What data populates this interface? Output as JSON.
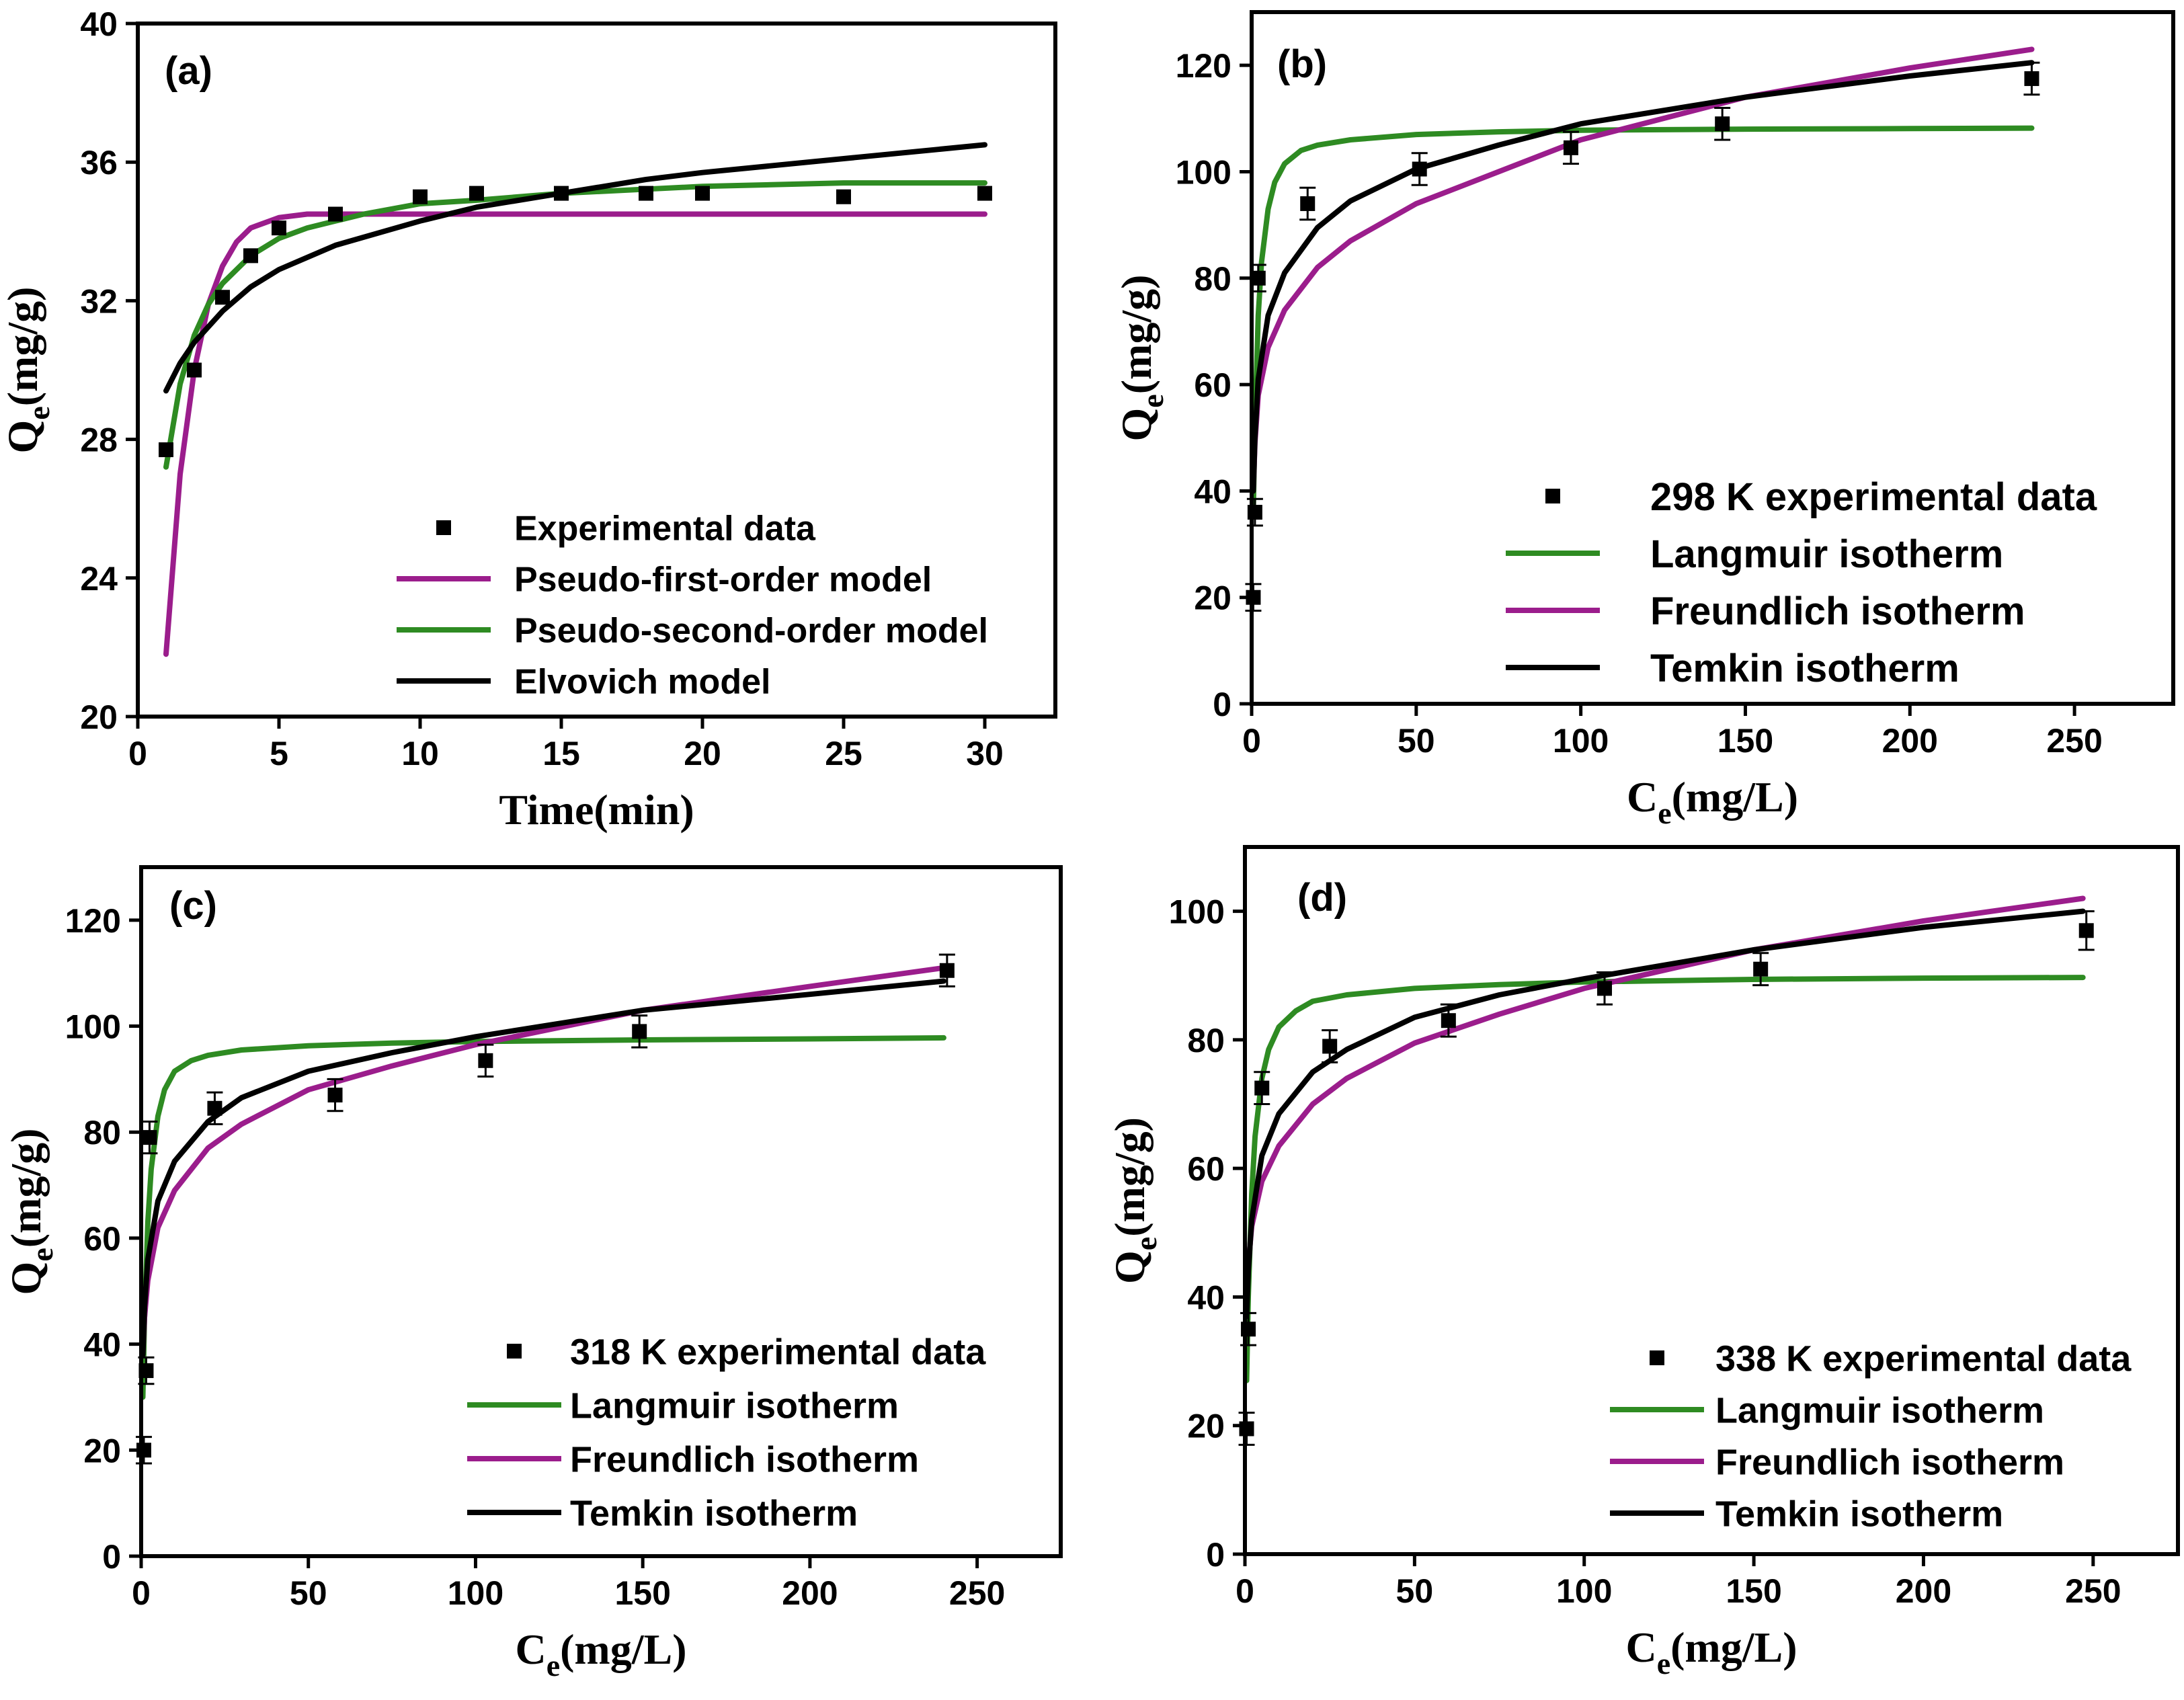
{
  "chart_data": [
    {
      "panel": "a",
      "type": "line",
      "panel_label": "(a)",
      "xlabel": "Time(min)",
      "ylabel_main": "Q",
      "ylabel_sub": "e",
      "ylabel_unit": "(mg/g)",
      "xlim": [
        0,
        32.5
      ],
      "ylim": [
        20,
        40
      ],
      "xticks": [
        0,
        5,
        10,
        15,
        20,
        25,
        30
      ],
      "yticks": [
        20,
        24,
        28,
        32,
        36,
        40
      ],
      "legend_position": "bottom-right",
      "points": {
        "name": "Experimental data",
        "x": [
          1,
          2,
          3,
          4,
          5,
          7,
          10,
          12,
          15,
          18,
          20,
          25,
          30
        ],
        "y": [
          27.7,
          30.0,
          32.1,
          33.3,
          34.1,
          34.5,
          35.0,
          35.1,
          35.1,
          35.1,
          35.1,
          35.0,
          35.1
        ]
      },
      "series": [
        {
          "name": "Pseudo-first-order model",
          "color": "#9b1d8c",
          "x": [
            1,
            1.5,
            2,
            2.5,
            3,
            3.5,
            4,
            5,
            6,
            7,
            8,
            10,
            15,
            20,
            25,
            30
          ],
          "y": [
            21.8,
            27.0,
            30.0,
            31.9,
            33.0,
            33.7,
            34.1,
            34.4,
            34.5,
            34.5,
            34.5,
            34.5,
            34.5,
            34.5,
            34.5,
            34.5
          ]
        },
        {
          "name": "Pseudo-second-order model",
          "color": "#2e8b22",
          "x": [
            1,
            1.5,
            2,
            2.5,
            3,
            4,
            5,
            6,
            7,
            8,
            10,
            12,
            15,
            20,
            25,
            30
          ],
          "y": [
            27.2,
            29.6,
            31.0,
            31.9,
            32.5,
            33.3,
            33.8,
            34.1,
            34.3,
            34.5,
            34.8,
            34.9,
            35.1,
            35.3,
            35.4,
            35.4
          ]
        },
        {
          "name": "Elvovich model",
          "color": "#000000",
          "x": [
            1,
            1.5,
            2,
            3,
            4,
            5,
            7,
            10,
            12,
            15,
            18,
            20,
            25,
            30
          ],
          "y": [
            29.4,
            30.2,
            30.8,
            31.7,
            32.4,
            32.9,
            33.6,
            34.3,
            34.7,
            35.1,
            35.5,
            35.7,
            36.1,
            36.5
          ]
        }
      ]
    },
    {
      "panel": "b",
      "type": "line",
      "panel_label": "(b)",
      "xlabel_main": "C",
      "xlabel_sub": "e",
      "xlabel_unit": "(mg/L)",
      "ylabel_main": "Q",
      "ylabel_sub": "e",
      "ylabel_unit": "(mg/g)",
      "xlim": [
        0,
        280
      ],
      "ylim": [
        0,
        130
      ],
      "xticks": [
        0,
        50,
        100,
        150,
        200,
        250
      ],
      "yticks": [
        0,
        20,
        40,
        60,
        80,
        100,
        120
      ],
      "legend_position": "bottom-right",
      "points": {
        "name": "298 K experimental data",
        "x": [
          0.5,
          1,
          2,
          17,
          51,
          97,
          143,
          237
        ],
        "y": [
          20,
          36,
          80,
          94,
          100.5,
          104.5,
          109,
          117.5
        ],
        "err": [
          2.5,
          2.5,
          2.5,
          3,
          3,
          3,
          3,
          3
        ]
      },
      "series": [
        {
          "name": "Langmuir isotherm",
          "color": "#2e8b22",
          "x": [
            0.5,
            1,
            2,
            3,
            5,
            7,
            10,
            15,
            20,
            30,
            50,
            75,
            100,
            150,
            200,
            237
          ],
          "y": [
            36,
            52,
            73,
            83,
            93,
            98,
            101.5,
            104,
            105,
            106,
            107,
            107.5,
            107.8,
            108,
            108.1,
            108.2
          ]
        },
        {
          "name": "Freundlich isotherm",
          "color": "#9b1d8c",
          "x": [
            0.5,
            1,
            2,
            5,
            10,
            20,
            30,
            50,
            75,
            100,
            150,
            200,
            237
          ],
          "y": [
            40,
            49,
            58,
            67,
            74,
            82,
            87,
            94,
            100,
            106,
            114,
            119.5,
            123
          ]
        },
        {
          "name": "Temkin isotherm",
          "color": "#000000",
          "x": [
            0.5,
            1,
            2,
            5,
            10,
            20,
            30,
            50,
            75,
            100,
            150,
            200,
            237
          ],
          "y": [
            40,
            50,
            61,
            73,
            81,
            89.5,
            94.5,
            100.5,
            105,
            109,
            114,
            118,
            120.5
          ]
        }
      ]
    },
    {
      "panel": "c",
      "type": "line",
      "panel_label": "(c)",
      "xlabel_main": "C",
      "xlabel_sub": "e",
      "xlabel_unit": "(mg/L)",
      "ylabel_main": "Q",
      "ylabel_sub": "e",
      "ylabel_unit": "(mg/g)",
      "xlim": [
        0,
        275
      ],
      "ylim": [
        0,
        130
      ],
      "xticks": [
        0,
        50,
        100,
        150,
        200,
        250
      ],
      "yticks": [
        0,
        20,
        40,
        60,
        80,
        100,
        120
      ],
      "legend_position": "bottom-right",
      "points": {
        "name": "318 K experimental data",
        "x": [
          0.8,
          1.5,
          2.5,
          22,
          58,
          103,
          149,
          241
        ],
        "y": [
          20,
          35,
          79,
          84.5,
          87,
          93.5,
          99,
          110.5
        ],
        "err": [
          2.5,
          2.5,
          3,
          3,
          3,
          3,
          3,
          3
        ]
      },
      "series": [
        {
          "name": "Langmuir isotherm",
          "color": "#2e8b22",
          "x": [
            0.5,
            1,
            2,
            3,
            5,
            7,
            10,
            15,
            20,
            30,
            50,
            75,
            100,
            150,
            200,
            240
          ],
          "y": [
            30,
            45,
            63,
            73,
            83,
            88,
            91.5,
            93.5,
            94.5,
            95.5,
            96.3,
            96.8,
            97.1,
            97.4,
            97.6,
            97.8
          ]
        },
        {
          "name": "Freundlich isotherm",
          "color": "#9b1d8c",
          "x": [
            0.5,
            1,
            2,
            5,
            10,
            20,
            30,
            50,
            75,
            100,
            150,
            200,
            240
          ],
          "y": [
            38,
            45,
            52,
            62,
            69,
            77,
            81.5,
            88,
            92.5,
            96.5,
            103,
            107.5,
            111
          ]
        },
        {
          "name": "Temkin isotherm",
          "color": "#000000",
          "x": [
            0.5,
            1,
            2,
            5,
            10,
            20,
            30,
            50,
            75,
            100,
            150,
            200,
            240
          ],
          "y": [
            38,
            47,
            56,
            67,
            74.5,
            82,
            86.5,
            91.5,
            95,
            98,
            103,
            106,
            108.5
          ]
        }
      ]
    },
    {
      "panel": "d",
      "type": "line",
      "panel_label": "(d)",
      "xlabel_main": "C",
      "xlabel_sub": "e",
      "xlabel_unit": "(mg/L)",
      "ylabel_main": "Q",
      "ylabel_sub": "e",
      "ylabel_unit": "(mg/g)",
      "xlim": [
        0,
        275
      ],
      "ylim": [
        0,
        110
      ],
      "xticks": [
        0,
        50,
        100,
        150,
        200,
        250
      ],
      "yticks": [
        0,
        20,
        40,
        60,
        80,
        100
      ],
      "legend_position": "bottom-right",
      "points": {
        "name": "338 K experimental data",
        "x": [
          0.5,
          1,
          5,
          25,
          60,
          106,
          152,
          248
        ],
        "y": [
          19.5,
          35,
          72.5,
          79,
          83,
          88,
          91,
          97
        ],
        "err": [
          2.5,
          2.5,
          2.5,
          2.5,
          2.5,
          2.5,
          2.5,
          3
        ]
      },
      "series": [
        {
          "name": "Langmuir isotherm",
          "color": "#2e8b22",
          "x": [
            0.5,
            1,
            2,
            3,
            5,
            7,
            10,
            15,
            20,
            30,
            50,
            75,
            100,
            150,
            200,
            247
          ],
          "y": [
            27,
            40,
            56,
            65,
            74,
            78.5,
            82,
            84.5,
            86,
            87,
            88,
            88.6,
            89,
            89.4,
            89.6,
            89.7
          ]
        },
        {
          "name": "Freundlich isotherm",
          "color": "#9b1d8c",
          "x": [
            0.5,
            1,
            2,
            5,
            10,
            20,
            30,
            50,
            75,
            100,
            150,
            200,
            247
          ],
          "y": [
            40,
            45,
            51,
            58,
            63.5,
            70,
            74,
            79.5,
            84,
            88,
            94,
            98.5,
            102
          ]
        },
        {
          "name": "Temkin isotherm",
          "color": "#000000",
          "x": [
            0.5,
            1,
            2,
            5,
            10,
            20,
            30,
            50,
            75,
            100,
            150,
            200,
            247
          ],
          "y": [
            37,
            44,
            52,
            62,
            68.5,
            75,
            78.5,
            83.5,
            87,
            89.5,
            94,
            97.5,
            100
          ]
        }
      ]
    }
  ]
}
